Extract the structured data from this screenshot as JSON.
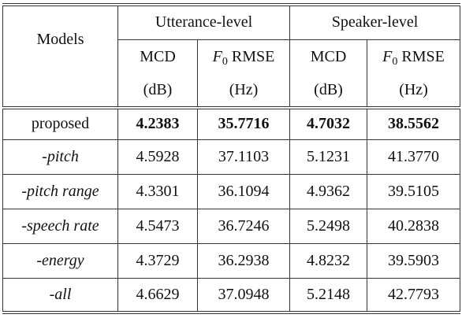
{
  "table": {
    "models_header": "Models",
    "groups": [
      "Utterance-level",
      "Speaker-level"
    ],
    "columns": [
      {
        "name": "MCD",
        "unit": "(dB)"
      },
      {
        "name": {
          "var": "F",
          "sub": "0",
          "text": "RMSE"
        },
        "unit": "(Hz)"
      },
      {
        "name": "MCD",
        "unit": "(dB)"
      },
      {
        "name": {
          "var": "F",
          "sub": "0",
          "text": "RMSE"
        },
        "unit": "(Hz)"
      }
    ],
    "rows": [
      {
        "model": "proposed",
        "italic": false,
        "bold": true,
        "values": [
          "4.2383",
          "35.7716",
          "4.7032",
          "38.5562"
        ]
      },
      {
        "model": "-pitch",
        "italic": true,
        "bold": false,
        "values": [
          "4.5928",
          "37.1103",
          "5.1231",
          "41.3770"
        ]
      },
      {
        "model": "-pitch range",
        "italic": true,
        "bold": false,
        "values": [
          "4.3301",
          "36.1094",
          "4.9362",
          "39.5105"
        ]
      },
      {
        "model": "-speech rate",
        "italic": true,
        "bold": false,
        "values": [
          "4.5473",
          "36.7246",
          "5.2498",
          "40.2838"
        ]
      },
      {
        "model": "-energy",
        "italic": true,
        "bold": false,
        "values": [
          "4.3729",
          "36.2938",
          "4.8232",
          "39.5903"
        ]
      },
      {
        "model": "-all",
        "italic": true,
        "bold": false,
        "values": [
          "4.6629",
          "37.0948",
          "5.2148",
          "42.7793"
        ]
      }
    ]
  }
}
